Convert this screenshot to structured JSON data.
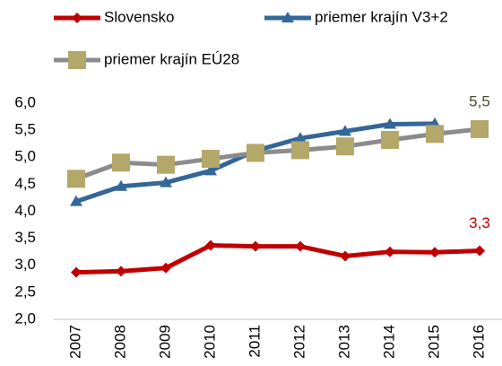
{
  "chart_data": {
    "type": "line",
    "categories": [
      "2007",
      "2008",
      "2009",
      "2010",
      "2011",
      "2012",
      "2013",
      "2014",
      "2015",
      "2016"
    ],
    "series": [
      {
        "name": "Slovensko",
        "color": "#c00000",
        "marker": "diamond",
        "marker_color": "#c00000",
        "values": [
          2.87,
          2.89,
          2.95,
          3.37,
          3.35,
          3.35,
          3.17,
          3.25,
          3.24,
          3.27
        ],
        "value_labels": [
          null,
          null,
          null,
          null,
          null,
          null,
          null,
          null,
          null,
          "3,3"
        ],
        "label_color": "#c00000"
      },
      {
        "name": "priemer krajín V3+2",
        "color": "#336699",
        "marker": "triangle",
        "marker_color": "#336699",
        "values": [
          4.18,
          4.46,
          4.53,
          4.75,
          5.12,
          5.35,
          5.48,
          5.61,
          5.62,
          null
        ]
      },
      {
        "name": "priemer krajín EÚ28",
        "color": "#8c8c8c",
        "marker": "square",
        "marker_color": "#b3a76a",
        "values": [
          4.6,
          4.9,
          4.86,
          4.97,
          5.08,
          5.13,
          5.2,
          5.32,
          5.43,
          5.52
        ],
        "value_labels": [
          null,
          null,
          null,
          null,
          null,
          null,
          null,
          null,
          null,
          "5,5"
        ],
        "label_color": "#4d4a2e"
      }
    ],
    "ylim": [
      2,
      6
    ],
    "yticks": [
      {
        "value": 2,
        "label": "2,0"
      },
      {
        "value": 2.5,
        "label": "2,5"
      },
      {
        "value": 3,
        "label": "3,0"
      },
      {
        "value": 3.5,
        "label": "3,5"
      },
      {
        "value": 4,
        "label": "4,0"
      },
      {
        "value": 4.5,
        "label": "4,5"
      },
      {
        "value": 5,
        "label": "5,0"
      },
      {
        "value": 5.5,
        "label": "5,5"
      },
      {
        "value": 6,
        "label": "6,0"
      }
    ],
    "grid": false,
    "legend": "top"
  }
}
